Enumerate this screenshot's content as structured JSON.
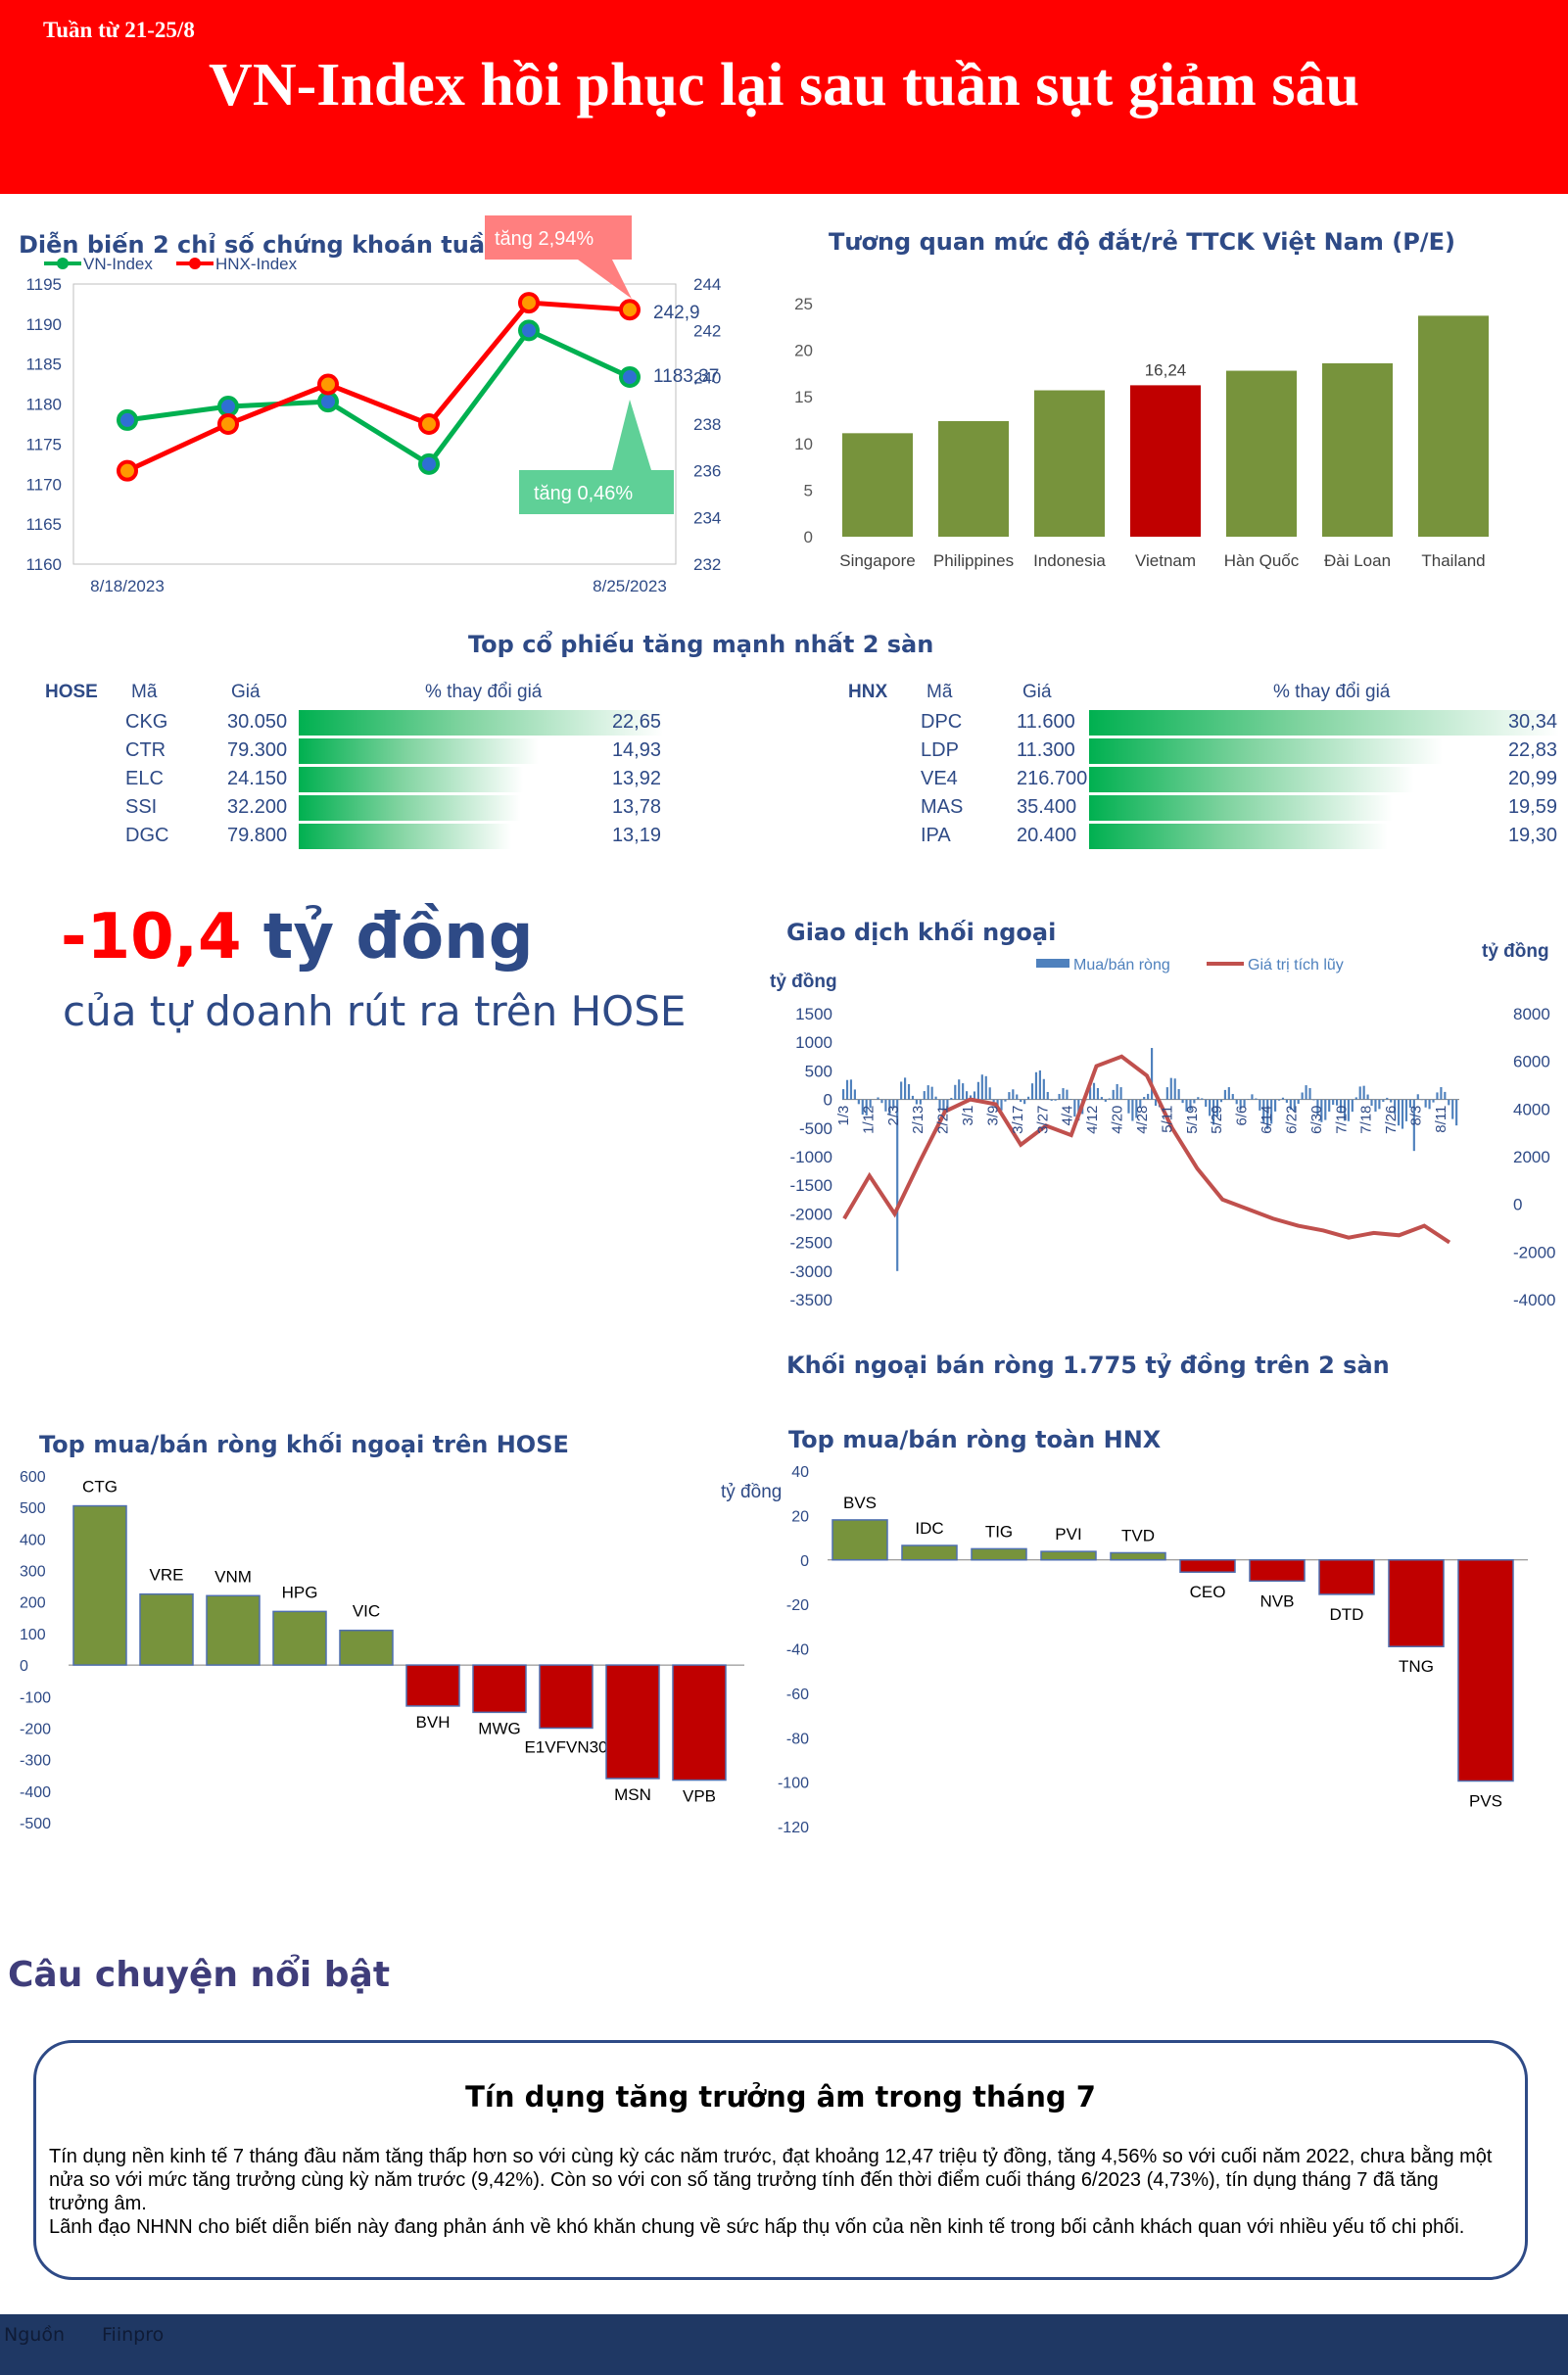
{
  "header": {
    "week": "Tuần từ 21-25/8",
    "headline": "VN-Index hồi phục lại sau tuần sụt giảm sâu"
  },
  "colors": {
    "header_red": "#ff0000",
    "green_bar": "#77933c",
    "red_bar": "#c00000",
    "navy": "#1f3864"
  },
  "index_chart": {
    "title": "Diễn biến 2 chỉ số chứng khoán tuần qua",
    "callout_up": "tăng 2,94%",
    "callout_down": "tăng 0,46%",
    "last_hnx_label": "242,9",
    "last_vn_label": "1183,37",
    "x_start_label": "8/18/2023",
    "x_end_label": "8/25/2023"
  },
  "pe_chart_title": "Tương quan mức độ đắt/rẻ TTCK Việt Nam (P/E)",
  "vietnam_pe_label": "16,24",
  "top_gainers": {
    "title": "Top cổ phiếu tăng mạnh nhất 2 sàn",
    "col_code": "Mã",
    "col_price": "Giá",
    "col_change": "% thay đổi giá",
    "hose": {
      "exchange": "HOSE",
      "rows": [
        {
          "code": "CKG",
          "price": "30.050",
          "change": "22,65",
          "pct": 22.65
        },
        {
          "code": "CTR",
          "price": "79.300",
          "change": "14,93",
          "pct": 14.93
        },
        {
          "code": "ELC",
          "price": "24.150",
          "change": "13,92",
          "pct": 13.92
        },
        {
          "code": "SSI",
          "price": "32.200",
          "change": "13,78",
          "pct": 13.78
        },
        {
          "code": "DGC",
          "price": "79.800",
          "change": "13,19",
          "pct": 13.19
        }
      ]
    },
    "hnx": {
      "exchange": "HNX",
      "rows": [
        {
          "code": "DPC",
          "price": "11.600",
          "change": "30,34",
          "pct": 30.34
        },
        {
          "code": "LDP",
          "price": "11.300",
          "change": "22,83",
          "pct": 22.83
        },
        {
          "code": "VE4",
          "price": "216.700",
          "change": "20,99",
          "pct": 20.99
        },
        {
          "code": "MAS",
          "price": "35.400",
          "change": "19,59",
          "pct": 19.59
        },
        {
          "code": "IPA",
          "price": "20.400",
          "change": "19,30",
          "pct": 19.3
        }
      ]
    }
  },
  "proprietary": {
    "value": "-10,4",
    "unit": " tỷ đồng",
    "subtitle": "của tự doanh rút ra trên HOSE"
  },
  "foreign_title": "Giao dịch khối ngoại",
  "foreign_net_summary": "Khối ngoại bán ròng 1.775 tỷ đồng trên 2 sàn",
  "hose_foreign_title": "Top mua/bán ròng khối ngoại trên HOSE",
  "hnx_foreign_title": "Top mua/bán ròng toàn HNX",
  "unit_label": "tỷ đồng",
  "story": {
    "section": "Câu chuyện nổi bật",
    "title": "Tín dụng tăng trưởng âm trong tháng 7",
    "p1": "Tín dụng nền kinh tế 7 tháng đầu năm tăng thấp hơn so với cùng kỳ các năm trước, đạt khoảng 12,47 triệu tỷ đồng, tăng 4,56% so với cuối năm 2022, chưa bằng một nửa so với mức tăng trưởng cùng kỳ năm trước (9,42%). Còn so với con số tăng trưởng tính đến thời điểm cuối tháng 6/2023 (4,73%), tín dụng tháng 7 đã tăng trưởng âm.",
    "p2": "Lãnh đạo NHNN cho biết diễn biến này đang phản ánh về khó khăn chung về sức hấp thụ vốn của nền kinh tế trong bối cảnh khách quan với nhiều yếu tố chi phối."
  },
  "footer": {
    "source_label": "Nguồn",
    "source": "Fiinpro"
  },
  "chart_data": [
    {
      "type": "line",
      "x_labels": [
        "8/18/2023",
        "",
        "",
        "",
        "",
        "8/25/2023"
      ],
      "series": [
        {
          "name": "VN-Index",
          "axis": "left",
          "color": "#00b050",
          "values": [
            1178,
            1179.7,
            1180.3,
            1172.5,
            1189.2,
            1183.37
          ]
        },
        {
          "name": "HNX-Index",
          "axis": "right",
          "color": "#ff0000",
          "values": [
            236.0,
            238.0,
            239.7,
            238.0,
            243.2,
            242.9
          ]
        }
      ],
      "y_left": {
        "min": 1160,
        "max": 1195,
        "step": 5,
        "ticks": [
          "1160",
          "1165",
          "1170",
          "1175",
          "1180",
          "1185",
          "1190",
          "1195"
        ]
      },
      "y_right": {
        "min": 232,
        "max": 244,
        "step": 2,
        "ticks": [
          "232",
          "234",
          "236",
          "238",
          "240",
          "242",
          "244"
        ]
      },
      "legend": "top-left"
    },
    {
      "type": "bar",
      "categories": [
        "Singapore",
        "Philippines",
        "Indonesia",
        "Vietnam",
        "Hàn Quốc",
        "Đài Loan",
        "Thailand"
      ],
      "values": [
        11.1,
        12.4,
        15.7,
        16.24,
        17.8,
        18.6,
        23.7
      ],
      "highlight": "Vietnam",
      "ylim": [
        0,
        25
      ],
      "yticks": [
        "0",
        "5",
        "10",
        "15",
        "20",
        "25"
      ]
    },
    {
      "type": "bar+line",
      "series_names": {
        "bars": "Mua/bán ròng",
        "line": "Giá trị tích lũy"
      },
      "x_labels": [
        "1/3",
        "1/12",
        "2/3",
        "2/13",
        "2/21",
        "3/1",
        "3/9",
        "3/17",
        "3/27",
        "4/4",
        "4/12",
        "4/20",
        "4/28",
        "5/11",
        "5/19",
        "5/29",
        "6/6",
        "6/14",
        "6/22",
        "6/30",
        "7/10",
        "7/18",
        "7/26",
        "8/3",
        "8/11"
      ],
      "y_left": {
        "min": -3500,
        "max": 1500,
        "ticks": [
          "1500",
          "1000",
          "500",
          "0",
          "-500",
          "-1000",
          "-1500",
          "-2000",
          "-2500",
          "-3000",
          "-3500"
        ]
      },
      "y_right": {
        "min": -4000,
        "max": 8000,
        "ticks": [
          "8000",
          "6000",
          "4000",
          "2000",
          "0",
          "-2000",
          "-4000"
        ]
      },
      "cumulative": [
        -600,
        1200,
        -400,
        1800,
        3900,
        4400,
        4200,
        2500,
        3300,
        2900,
        5800,
        6200,
        5400,
        3200,
        1500,
        200,
        -200,
        -600,
        -900,
        -1100,
        -1400,
        -1200,
        -1300,
        -900,
        -1600
      ]
    },
    {
      "type": "bar",
      "categories": [
        "CTG",
        "VRE",
        "VNM",
        "HPG",
        "VIC",
        "BVH",
        "MWG",
        "E1VFVN30",
        "MSN",
        "VPB"
      ],
      "values": [
        505,
        225,
        220,
        170,
        110,
        -130,
        -150,
        -200,
        -360,
        -365
      ],
      "ylim": [
        -500,
        600
      ],
      "yticks": [
        "600",
        "500",
        "400",
        "300",
        "200",
        "100",
        "0",
        "-100",
        "-200",
        "-300",
        "-400",
        "-500"
      ]
    },
    {
      "type": "bar",
      "categories": [
        "BVS",
        "IDC",
        "TIG",
        "PVI",
        "TVD",
        "CEO",
        "NVB",
        "DTD",
        "TNG",
        "PVS"
      ],
      "values": [
        18,
        6.5,
        5,
        3.8,
        3.2,
        -5.5,
        -9.5,
        -15.5,
        -39,
        -99.5
      ],
      "ylim": [
        -120,
        40
      ],
      "yticks": [
        "40",
        "20",
        "0",
        "-20",
        "-40",
        "-60",
        "-80",
        "-100",
        "-120"
      ]
    }
  ]
}
